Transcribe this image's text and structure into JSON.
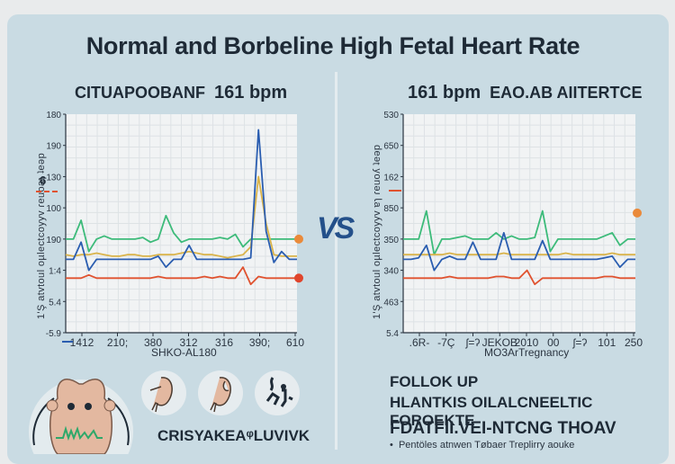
{
  "title": "Normal and Borbeline High Fetal Heart Rate",
  "vs_label": "VS",
  "left_panel": {
    "subtitle_text": "CITUAPOOBANF",
    "subtitle_bpm": "161 bpm",
    "y_axis_label": "1'Ş atvtoul oµlectcoyyv  ɾeuoaɿ  ʇeəp",
    "side_marker": "6",
    "x_axis_label": "SHKO-AL180",
    "bottom_heading": "CRISYAKEAᵠLUVIVK"
  },
  "right_panel": {
    "subtitle_bpm": "161 bpm",
    "subtitle_text": "EAO.AB AIITERTCE",
    "y_axis_label": "1'Ş atvtoul oµlectcoyyv  ɐɿ  ɾeuoʎ  ʇeəp",
    "x_axis_label": "MO3ArTregnancy",
    "followup_heading": "FOLLOK UP",
    "followup_subheading": "HLANTKIS OILALCNEELTIC FOROEKTE",
    "section_heading": "FDATFII.VEI-NTCNG THOAV",
    "bullets": [
      "Pentöles atnwen Tøbaer Treplirry aouke"
    ]
  },
  "colors": {
    "green": "#3dbb7a",
    "blue": "#2a5db0",
    "yellow": "#d9b34a",
    "red": "#e0522f",
    "orange_marker": "#ea8a3a",
    "red_marker": "#e0452c",
    "title": "#1e2a36",
    "vs": "#24508a"
  },
  "chart_data": [
    {
      "type": "line",
      "title": "CITUAPOOBANF 161 bpm",
      "xlabel": "SHKO-AL180",
      "ylabel": "1'Ş atvtoul oµlectcoyyv ɾeuoaɿ ʇeəp",
      "x_tick_labels": [
        "1412",
        "210;",
        "380",
        "312",
        "316",
        "390;",
        "610"
      ],
      "y_tick_labels": [
        "180",
        "190",
        "130",
        "100",
        "190",
        "1:4",
        "5.4",
        "-5.9"
      ],
      "grid": true,
      "x": [
        0,
        1,
        2,
        3,
        4,
        5,
        6,
        7,
        8,
        9,
        10,
        11,
        12,
        13,
        14,
        15,
        16,
        17,
        18,
        19,
        20,
        21,
        22,
        23,
        24,
        25,
        26,
        27,
        28,
        29,
        30
      ],
      "series": [
        {
          "name": "green",
          "values": [
            100,
            100,
            112,
            92,
            100,
            102,
            100,
            100,
            100,
            100,
            101,
            98,
            100,
            115,
            104,
            98,
            100,
            100,
            100,
            100,
            101,
            100,
            103,
            95,
            100,
            100,
            100,
            100,
            100,
            100,
            100
          ]
        },
        {
          "name": "yellow",
          "values": [
            90,
            89,
            90,
            90,
            91,
            90,
            89,
            89,
            90,
            90,
            89,
            89,
            90,
            90,
            90,
            91,
            92,
            91,
            90,
            90,
            89,
            88,
            89,
            90,
            95,
            140,
            110,
            90,
            89,
            89,
            89
          ]
        },
        {
          "name": "blue",
          "values": [
            87,
            87,
            98,
            80,
            87,
            87,
            87,
            87,
            87,
            87,
            87,
            87,
            89,
            82,
            87,
            87,
            96,
            87,
            87,
            87,
            87,
            87,
            87,
            87,
            88,
            170,
            105,
            85,
            92,
            87,
            87
          ]
        },
        {
          "name": "red",
          "values": [
            75,
            75,
            75,
            77,
            75,
            75,
            75,
            75,
            75,
            75,
            75,
            75,
            76,
            75,
            75,
            75,
            75,
            75,
            76,
            75,
            76,
            75,
            75,
            82,
            71,
            76,
            75,
            75,
            75,
            75,
            75
          ]
        }
      ],
      "end_markers": [
        {
          "series": "green",
          "color": "orange"
        },
        {
          "series": "red",
          "color": "red"
        }
      ],
      "ylim": [
        40,
        180
      ]
    },
    {
      "type": "line",
      "title": "161 bpm EAO.AB AIITERTCE",
      "xlabel": "MO3ArTregnancy",
      "ylabel": "1'Ş atvtoul oµlectcoyyv ɐɿ ɾeuoʎ ʇeəp",
      "x_tick_labels": [
        ".6R-",
        "-7Ç",
        "ʃ=ʔ",
        "JEKOB",
        "2010",
        "00",
        "ʃ=ʔ",
        "101",
        "250"
      ],
      "y_tick_labels": [
        "530",
        "650",
        "162",
        "850",
        "350",
        "340",
        "463",
        "5.4"
      ],
      "grid": true,
      "x": [
        0,
        1,
        2,
        3,
        4,
        5,
        6,
        7,
        8,
        9,
        10,
        11,
        12,
        13,
        14,
        15,
        16,
        17,
        18,
        19,
        20,
        21,
        22,
        23,
        24,
        25,
        26,
        27,
        28,
        29,
        30
      ],
      "series": [
        {
          "name": "green",
          "values": [
            100,
            100,
            100,
            118,
            90,
            100,
            100,
            101,
            102,
            100,
            100,
            100,
            104,
            100,
            102,
            100,
            100,
            101,
            118,
            92,
            100,
            100,
            100,
            100,
            100,
            100,
            102,
            104,
            96,
            100,
            100
          ]
        },
        {
          "name": "yellow",
          "values": [
            90,
            90,
            90,
            90,
            90,
            90,
            91,
            90,
            90,
            90,
            90,
            90,
            90,
            91,
            90,
            90,
            90,
            90,
            90,
            90,
            90,
            91,
            90,
            90,
            90,
            90,
            90,
            91,
            90,
            90,
            90
          ]
        },
        {
          "name": "blue",
          "values": [
            87,
            87,
            88,
            96,
            80,
            87,
            89,
            87,
            87,
            98,
            87,
            87,
            87,
            104,
            87,
            87,
            87,
            87,
            99,
            87,
            87,
            87,
            87,
            87,
            87,
            87,
            88,
            89,
            82,
            87,
            87
          ]
        },
        {
          "name": "red",
          "values": [
            75,
            75,
            75,
            75,
            75,
            75,
            76,
            75,
            75,
            75,
            75,
            75,
            76,
            76,
            75,
            75,
            80,
            71,
            75,
            75,
            75,
            75,
            75,
            75,
            75,
            75,
            76,
            76,
            75,
            75,
            75
          ]
        }
      ],
      "end_markers": [
        {
          "series": "green",
          "color": "orange",
          "offset": "above"
        }
      ],
      "ylim": [
        40,
        180
      ]
    }
  ]
}
